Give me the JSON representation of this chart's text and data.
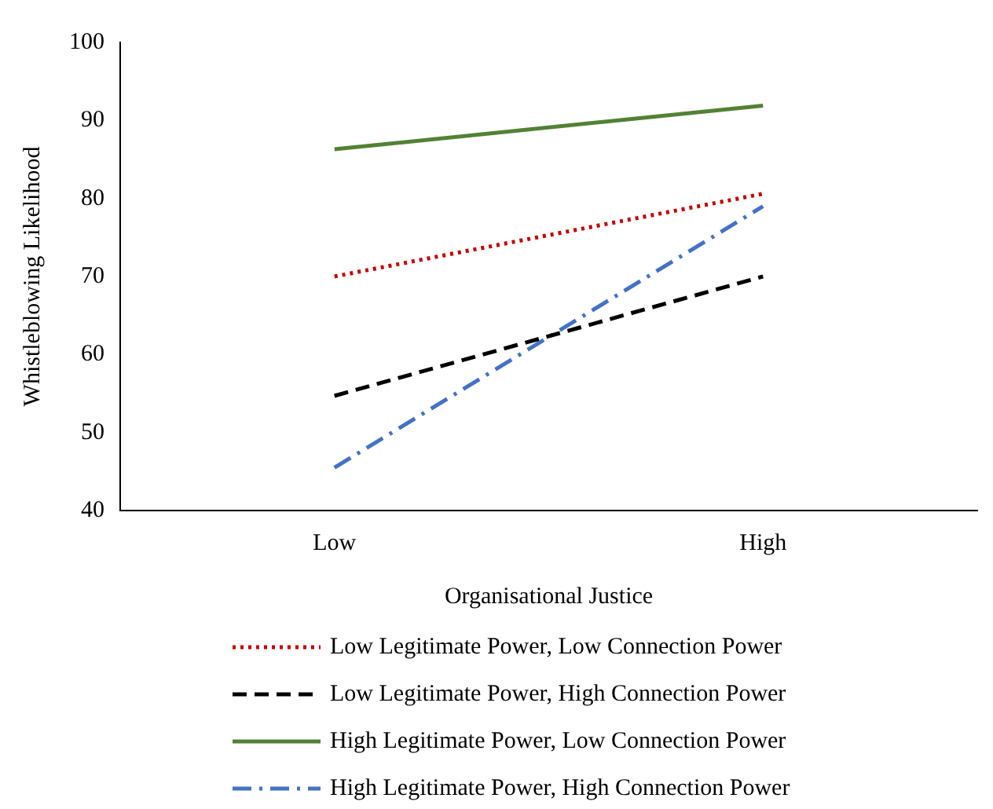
{
  "chart_data": {
    "type": "line",
    "xlabel": "Organisational Justice",
    "ylabel": "Whistleblowing Likelihood",
    "categories": [
      "Low",
      "High"
    ],
    "ylim": [
      40,
      100
    ],
    "yticks": [
      40,
      50,
      60,
      70,
      80,
      90,
      100
    ],
    "grid": false,
    "legend": "bottom",
    "marker": "none",
    "series": [
      {
        "name": "Low Legitimate Power, Low Connection Power",
        "color": "#c00000",
        "line_style": "dotted",
        "values": [
          70,
          80.6
        ]
      },
      {
        "name": "Low Legitimate Power, High Connection Power",
        "color": "#000000",
        "line_style": "dashed",
        "values": [
          54.7,
          70
        ]
      },
      {
        "name": "High Legitimate Power, Low Connection Power",
        "color": "#538135",
        "line_style": "solid",
        "values": [
          86.3,
          91.9
        ]
      },
      {
        "name": "High Legitimate Power, High Connection Power",
        "color": "#4472c4",
        "line_style": "dashdot",
        "values": [
          45.5,
          79
        ]
      }
    ]
  }
}
